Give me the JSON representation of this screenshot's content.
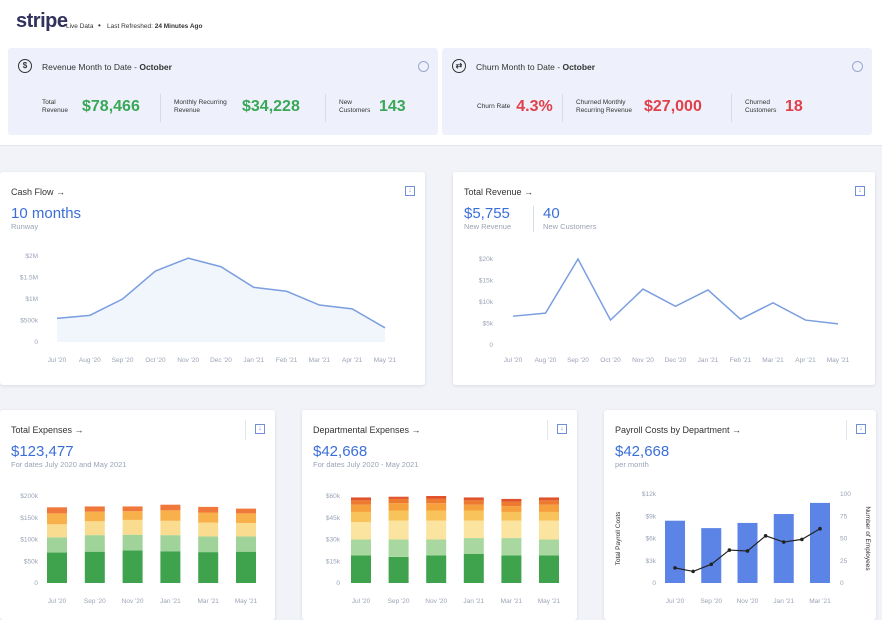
{
  "header": {
    "logo": "stripe",
    "status": "Live Data",
    "refresh_label": "Last Refreshed:",
    "refresh_value": "24 Minutes Ago"
  },
  "summary": [
    {
      "title": "Revenue Month to Date - ",
      "period": "October",
      "color": "#3aa757",
      "metrics": [
        {
          "label": "Total Revenue",
          "value": "$78,466"
        },
        {
          "label": "Monthly Recurring Revenue",
          "value": "$34,228"
        },
        {
          "label": "New Customers",
          "value": "143"
        }
      ]
    },
    {
      "title": "Churn Month to Date - ",
      "period": "October",
      "color": "#e0404a",
      "metrics": [
        {
          "label": "Churn Rate",
          "value": "4.3%"
        },
        {
          "label": "Churned Monthly Recurring Revenue",
          "value": "$27,000"
        },
        {
          "label": "Churned Customers",
          "value": "18"
        }
      ]
    }
  ],
  "chart_data": [
    {
      "type": "area",
      "title": "Cash Flow →",
      "stats": [
        {
          "value": "10 months",
          "label": "Runway"
        }
      ],
      "categories": [
        "Jul '20",
        "Aug '20",
        "Sep '20",
        "Oct '20",
        "Nov '20",
        "Dec '20",
        "Jan '21",
        "Feb '21",
        "Mar '21",
        "Apr '21",
        "May '21"
      ],
      "values": [
        550000,
        620000,
        1000000,
        1650000,
        1950000,
        1750000,
        1270000,
        1180000,
        860000,
        770000,
        330000
      ],
      "color": "#7a9ee0",
      "ylim": [
        0,
        2000000
      ],
      "yticks": [
        0,
        {
          "value": 500000,
          "label": "$500k"
        },
        {
          "value": 1000000,
          "label": "$1M"
        },
        {
          "value": 1500000,
          "label": "$1.5M"
        },
        {
          "value": 2000000,
          "label": "$2M"
        }
      ]
    },
    {
      "type": "line",
      "title": "Total Revenue →",
      "stats": [
        {
          "value": "$5,755",
          "label": "New Revenue"
        },
        {
          "value": "40",
          "label": "New Customers"
        }
      ],
      "categories": [
        "Jul '20",
        "Aug '20",
        "Sep '20",
        "Oct '20",
        "Nov '20",
        "Dec '20",
        "Jan '21",
        "Feb '21",
        "Mar '21",
        "Apr '21",
        "May '21"
      ],
      "values": [
        6700,
        7400,
        20000,
        5800,
        13000,
        9000,
        12800,
        6000,
        9800,
        5800,
        4900
      ],
      "color": "#7a9ee0",
      "ylim": [
        0,
        20000
      ],
      "yticks": [
        0,
        {
          "value": 5000,
          "label": "$5k"
        },
        {
          "value": 10000,
          "label": "$10k"
        },
        {
          "value": 15000,
          "label": "$15k"
        },
        {
          "value": 20000,
          "label": "$20k"
        }
      ]
    },
    {
      "type": "stacked_bar",
      "title": "Total Expenses →",
      "stats": [
        {
          "value": "$123,477",
          "label": "For dates July 2020 and May 2021"
        }
      ],
      "categories": [
        "Jul '20",
        "Sep '20",
        "Nov '20",
        "Jan '21",
        "Mar '21",
        "May '21"
      ],
      "series": [
        {
          "color": "#3fa34d",
          "values": [
            70000,
            72000,
            75000,
            73000,
            71000,
            72000
          ]
        },
        {
          "color": "#9fd39a",
          "values": [
            35000,
            38000,
            36000,
            37000,
            36000,
            35000
          ]
        },
        {
          "color": "#f9dc8f",
          "values": [
            30000,
            32000,
            34000,
            33000,
            32000,
            31000
          ]
        },
        {
          "color": "#f7b04a",
          "values": [
            25000,
            22000,
            20000,
            24000,
            23000,
            22000
          ]
        },
        {
          "color": "#f0783a",
          "values": [
            14000,
            12000,
            11000,
            13000,
            13000,
            11000
          ]
        }
      ],
      "ylim": [
        0,
        200000
      ],
      "yticks": [
        0,
        {
          "value": 50000,
          "label": "$50k"
        },
        {
          "value": 100000,
          "label": "$100k"
        },
        {
          "value": 150000,
          "label": "$150k"
        },
        {
          "value": 200000,
          "label": "$200k"
        }
      ]
    },
    {
      "type": "stacked_bar",
      "title": "Departmental Expenses →",
      "stats": [
        {
          "value": "$42,668",
          "label": "For dates July 2020 - May 2021"
        }
      ],
      "categories": [
        "Jul '20",
        "Sep '20",
        "Nov '20",
        "Jan '21",
        "Mar '21",
        "May '21"
      ],
      "series": [
        {
          "color": "#3fa34d",
          "values": [
            19000,
            18000,
            19000,
            20000,
            19000,
            19000
          ]
        },
        {
          "color": "#a8d8a0",
          "values": [
            11000,
            12000,
            11000,
            11000,
            12000,
            11000
          ]
        },
        {
          "color": "#fbe3a0",
          "values": [
            12000,
            13000,
            13000,
            12000,
            12000,
            13000
          ]
        },
        {
          "color": "#f8c35a",
          "values": [
            7000,
            7000,
            7000,
            7000,
            6000,
            6000
          ]
        },
        {
          "color": "#f6a03c",
          "values": [
            5000,
            5000,
            5000,
            4000,
            4000,
            5000
          ]
        },
        {
          "color": "#ee7a30",
          "values": [
            3000,
            3000,
            3000,
            3000,
            3000,
            3000
          ]
        },
        {
          "color": "#e0522a",
          "values": [
            2000,
            1500,
            2000,
            2000,
            2000,
            2000
          ]
        }
      ],
      "ylim": [
        0,
        60000
      ],
      "yticks": [
        0,
        {
          "value": 15000,
          "label": "$15k"
        },
        {
          "value": 30000,
          "label": "$30k"
        },
        {
          "value": 45000,
          "label": "$45k"
        },
        {
          "value": 60000,
          "label": "$60k"
        }
      ]
    },
    {
      "type": "combo",
      "title": "Payroll Costs by Department →",
      "stats": [
        {
          "value": "$42,668",
          "label": "per month"
        }
      ],
      "categories": [
        "Jul '20",
        null,
        "Sep '20",
        null,
        "Nov '20",
        null,
        "Jan '21",
        null,
        "Mar '21"
      ],
      "ylabel": "Total Payroll Costs",
      "y2label": "Number of Employees",
      "series": [
        {
          "type": "bar",
          "color": "#5b84e6",
          "values": [
            8400,
            null,
            7400,
            null,
            8100,
            null,
            9300,
            null,
            10800
          ]
        },
        {
          "type": "line",
          "axis": "y2",
          "color": "#222222",
          "values": [
            17,
            13,
            21,
            37,
            36,
            53,
            46,
            49,
            61
          ]
        }
      ],
      "ylim": [
        0,
        12000
      ],
      "yticks": [
        0,
        {
          "value": 3000,
          "label": "$3k"
        },
        {
          "value": 6000,
          "label": "$6k"
        },
        {
          "value": 9000,
          "label": "$9k"
        },
        {
          "value": 12000,
          "label": "$12k"
        }
      ],
      "y2lim": [
        0,
        100
      ],
      "y2ticks": [
        0,
        25,
        50,
        75,
        100
      ]
    }
  ]
}
